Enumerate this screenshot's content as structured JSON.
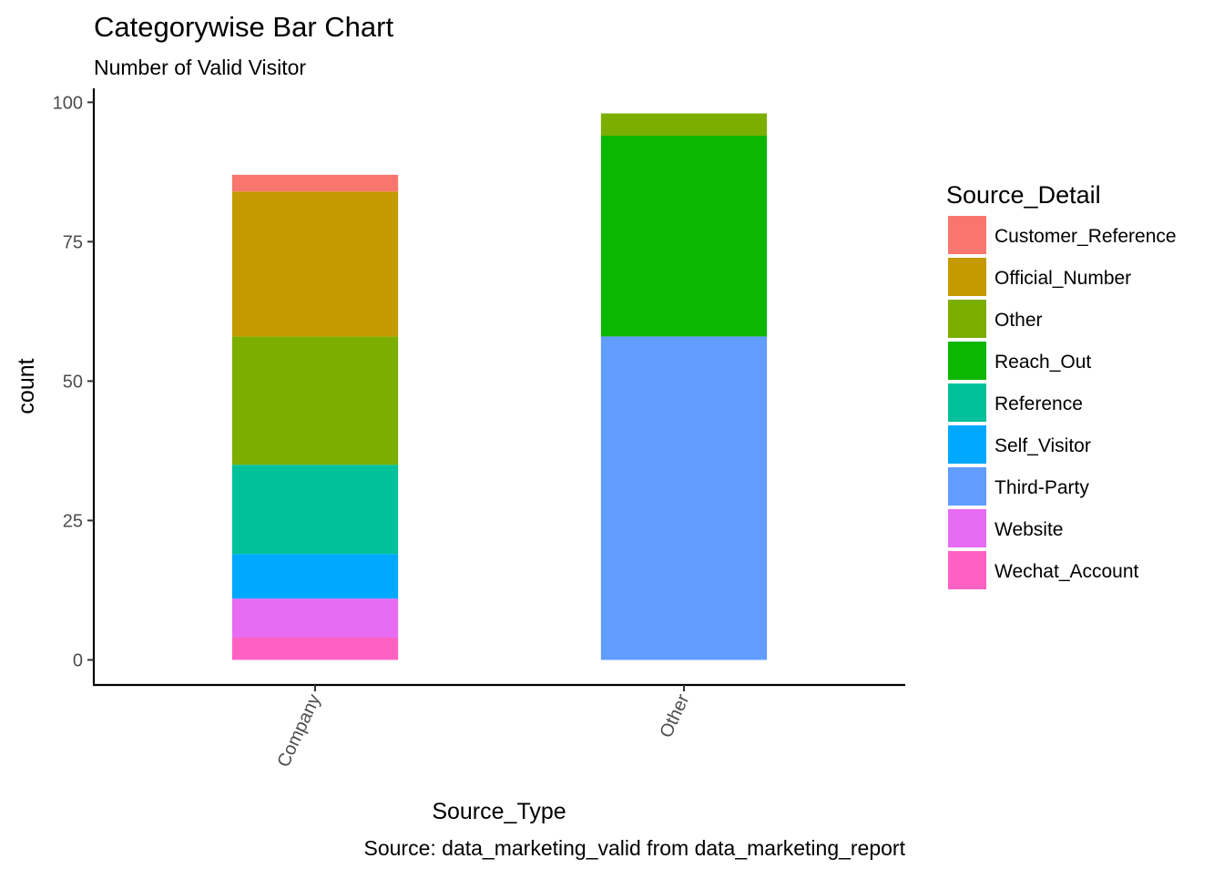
{
  "chart_data": {
    "type": "bar",
    "stacked": true,
    "title": "Categorywise Bar Chart",
    "subtitle": "Number of Valid Visitor",
    "caption": "Source: data_marketing_valid from data_marketing_report",
    "xlabel": "Source_Type",
    "ylabel": "count",
    "ylim": [
      -4.5,
      102.5
    ],
    "yticks": [
      0,
      25,
      50,
      75,
      100
    ],
    "grid": false,
    "legend_position": "right",
    "legend_title": "Source_Detail",
    "categories": [
      "Company",
      "Other"
    ],
    "series": [
      {
        "name": "Customer_Reference",
        "color": "#F8766D",
        "values": [
          3,
          0
        ]
      },
      {
        "name": "Official_Number",
        "color": "#C49A00",
        "values": [
          26,
          0
        ]
      },
      {
        "name": "Other",
        "color": "#7CAE00",
        "values": [
          23,
          4
        ]
      },
      {
        "name": "Reach_Out",
        "color": "#0CB702",
        "values": [
          0,
          36
        ]
      },
      {
        "name": "Reference",
        "color": "#00C19A",
        "values": [
          16,
          0
        ]
      },
      {
        "name": "Self_Visitor",
        "color": "#00A9FF",
        "values": [
          8,
          0
        ]
      },
      {
        "name": "Third-Party",
        "color": "#619CFF",
        "values": [
          0,
          58
        ]
      },
      {
        "name": "Website",
        "color": "#E76BF3",
        "values": [
          7,
          0
        ]
      },
      {
        "name": "Wechat_Account",
        "color": "#FF61C3",
        "values": [
          4,
          0
        ]
      }
    ]
  }
}
